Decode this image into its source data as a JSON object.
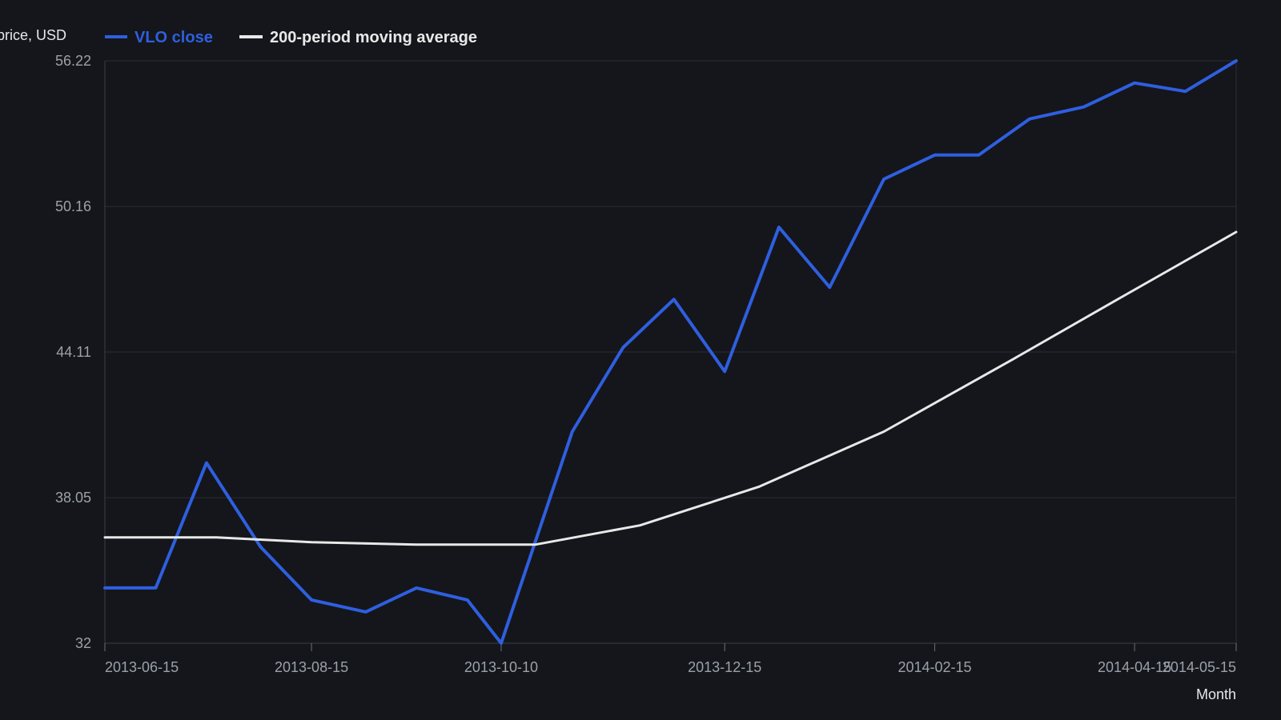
{
  "colors": {
    "background": "#14161b",
    "close": "#2f5fe0",
    "moving_average": "#e8e8e8",
    "grid": "#2a2e35",
    "tick_text": "#9ba1aa"
  },
  "chart_data": {
    "type": "line",
    "title": "",
    "xlabel": "Month",
    "ylabel": "Share price, USD",
    "ylim": [
      32,
      56.22
    ],
    "yticks": [
      32,
      38.05,
      44.11,
      50.16,
      56.22
    ],
    "xticks": [
      "2013-06-15",
      "2013-08-15",
      "2013-10-10",
      "2013-12-15",
      "2014-02-15",
      "2014-04-15",
      "2014-05-15"
    ],
    "grid": true,
    "legend_position": "top-left",
    "series": [
      {
        "name": "VLO close",
        "color": "#2f5fe0",
        "points": [
          [
            "2013-06-15",
            34.3
          ],
          [
            "2013-06-30",
            34.3
          ],
          [
            "2013-07-15",
            39.5
          ],
          [
            "2013-07-31",
            36.0
          ],
          [
            "2013-08-15",
            33.8
          ],
          [
            "2013-08-31",
            33.3
          ],
          [
            "2013-09-15",
            34.3
          ],
          [
            "2013-09-30",
            33.8
          ],
          [
            "2013-10-10",
            32.0
          ],
          [
            "2013-10-31",
            40.8
          ],
          [
            "2013-11-15",
            44.3
          ],
          [
            "2013-11-30",
            46.3
          ],
          [
            "2013-12-15",
            43.3
          ],
          [
            "2013-12-31",
            49.3
          ],
          [
            "2014-01-15",
            46.8
          ],
          [
            "2014-01-31",
            51.3
          ],
          [
            "2014-02-15",
            52.3
          ],
          [
            "2014-02-28",
            52.3
          ],
          [
            "2014-03-15",
            53.8
          ],
          [
            "2014-03-31",
            54.3
          ],
          [
            "2014-04-15",
            55.3
          ],
          [
            "2014-04-30",
            54.95
          ],
          [
            "2014-05-15",
            56.22
          ]
        ]
      },
      {
        "name": "200-period moving average",
        "color": "#e8e8e8",
        "points": [
          [
            "2013-06-15",
            36.4
          ],
          [
            "2013-07-18",
            36.4
          ],
          [
            "2013-08-15",
            36.2
          ],
          [
            "2013-09-15",
            36.1
          ],
          [
            "2013-10-20",
            36.1
          ],
          [
            "2013-11-20",
            36.9
          ],
          [
            "2013-12-25",
            38.5
          ],
          [
            "2014-01-31",
            40.8
          ],
          [
            "2014-03-10",
            43.8
          ],
          [
            "2014-04-10",
            46.3
          ],
          [
            "2014-05-15",
            49.1
          ]
        ]
      }
    ]
  }
}
